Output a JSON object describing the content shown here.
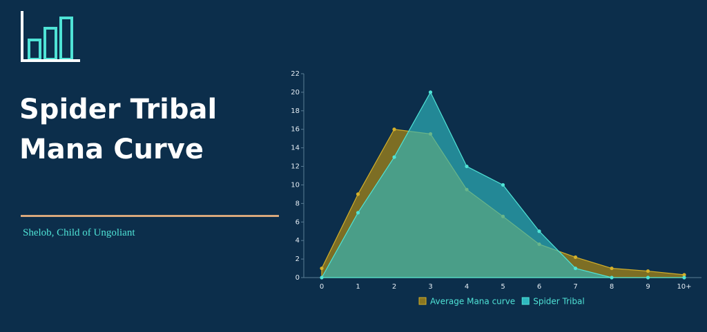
{
  "title": "Spider Tribal Mana Curve",
  "subtitle": "Shelob, Child of Ungoliant",
  "chart_data": {
    "type": "area",
    "categories": [
      "0",
      "1",
      "2",
      "3",
      "4",
      "5",
      "6",
      "7",
      "8",
      "9",
      "10+"
    ],
    "series": [
      {
        "name": "Average Mana curve",
        "color": "#d4b02a",
        "fill": "#8a7620",
        "values": [
          1,
          9,
          16,
          15.5,
          9.5,
          6.6,
          3.6,
          2.2,
          1,
          0.7,
          0.3
        ]
      },
      {
        "name": "Spider Tribal",
        "color": "#4fe3d6",
        "fill": "#2fb8bf",
        "values": [
          0,
          7,
          13,
          20,
          12,
          10,
          5,
          1,
          0,
          0,
          0
        ]
      }
    ],
    "ylim": [
      0,
      22
    ],
    "yticks": [
      0,
      2,
      4,
      6,
      8,
      10,
      12,
      14,
      16,
      18,
      20,
      22
    ]
  }
}
